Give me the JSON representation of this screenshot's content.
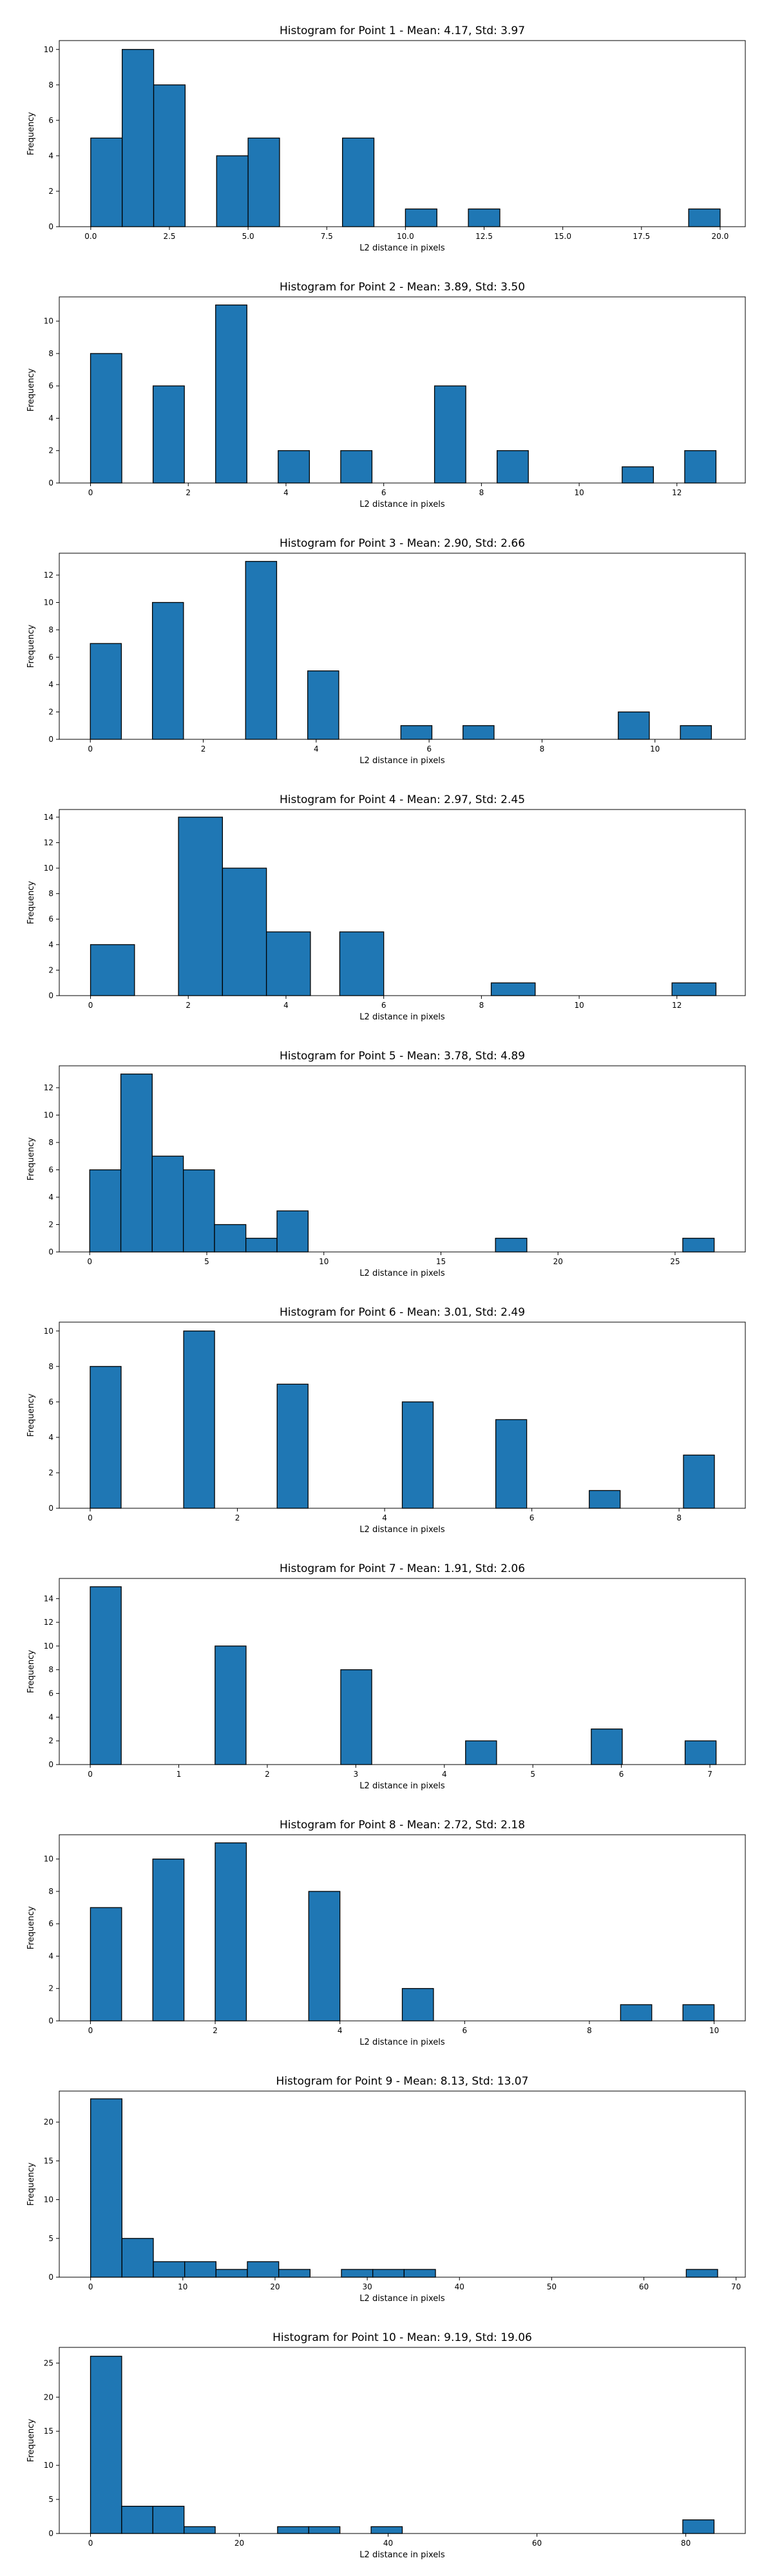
{
  "chart_data": [
    {
      "type": "bar",
      "title": "Histogram for Point 1 - Mean: 4.17, Std: 3.97",
      "xlabel": "L2 distance in pixels",
      "ylabel": "Frequency",
      "xlim": [
        -1.0,
        20.8
      ],
      "ylim": [
        0,
        10.5
      ],
      "xticks": [
        0,
        2.5,
        5,
        7.5,
        10,
        12.5,
        15,
        17.5,
        20
      ],
      "xtick_labels": [
        "0.0",
        "2.5",
        "5.0",
        "7.5",
        "10.0",
        "12.5",
        "15.0",
        "17.5",
        "20.0"
      ],
      "yticks": [
        0,
        2,
        4,
        6,
        8,
        10
      ],
      "bins": [
        {
          "x0": 0.0,
          "x1": 1.0,
          "count": 5
        },
        {
          "x0": 1.0,
          "x1": 2.0,
          "count": 10
        },
        {
          "x0": 2.0,
          "x1": 3.0,
          "count": 8
        },
        {
          "x0": 4.0,
          "x1": 5.0,
          "count": 4
        },
        {
          "x0": 5.0,
          "x1": 6.0,
          "count": 5
        },
        {
          "x0": 8.0,
          "x1": 9.0,
          "count": 5
        },
        {
          "x0": 10.0,
          "x1": 11.0,
          "count": 1
        },
        {
          "x0": 12.0,
          "x1": 13.0,
          "count": 1
        },
        {
          "x0": 19.0,
          "x1": 20.0,
          "count": 1
        }
      ]
    },
    {
      "type": "bar",
      "title": "Histogram for Point 2 - Mean: 3.89, Std: 3.50",
      "xlabel": "L2 distance in pixels",
      "ylabel": "Frequency",
      "xlim": [
        -0.64,
        13.4
      ],
      "ylim": [
        0,
        11.5
      ],
      "xticks": [
        0,
        2,
        4,
        6,
        8,
        10,
        12
      ],
      "xtick_labels": [
        "0",
        "2",
        "4",
        "6",
        "8",
        "10",
        "12"
      ],
      "yticks": [
        0,
        2,
        4,
        6,
        8,
        10
      ],
      "bins": [
        {
          "x0": 0.0,
          "x1": 0.64,
          "count": 8
        },
        {
          "x0": 1.28,
          "x1": 1.92,
          "count": 6
        },
        {
          "x0": 2.56,
          "x1": 3.2,
          "count": 11
        },
        {
          "x0": 3.84,
          "x1": 4.48,
          "count": 2
        },
        {
          "x0": 5.12,
          "x1": 5.76,
          "count": 2
        },
        {
          "x0": 7.04,
          "x1": 7.68,
          "count": 6
        },
        {
          "x0": 8.32,
          "x1": 8.96,
          "count": 2
        },
        {
          "x0": 10.88,
          "x1": 11.52,
          "count": 1
        },
        {
          "x0": 12.16,
          "x1": 12.8,
          "count": 2
        }
      ]
    },
    {
      "type": "bar",
      "title": "Histogram for Point 3 - Mean: 2.90, Std: 2.66",
      "xlabel": "L2 distance in pixels",
      "ylabel": "Frequency",
      "xlim": [
        -0.55,
        11.6
      ],
      "ylim": [
        0,
        13.6
      ],
      "xticks": [
        0,
        2,
        4,
        6,
        8,
        10
      ],
      "xtick_labels": [
        "0",
        "2",
        "4",
        "6",
        "8",
        "10"
      ],
      "yticks": [
        0,
        2,
        4,
        6,
        8,
        10,
        12
      ],
      "bins": [
        {
          "x0": 0.0,
          "x1": 0.55,
          "count": 7
        },
        {
          "x0": 1.1,
          "x1": 1.65,
          "count": 10
        },
        {
          "x0": 2.75,
          "x1": 3.3,
          "count": 13
        },
        {
          "x0": 3.85,
          "x1": 4.4,
          "count": 5
        },
        {
          "x0": 5.5,
          "x1": 6.05,
          "count": 1
        },
        {
          "x0": 6.6,
          "x1": 7.15,
          "count": 1
        },
        {
          "x0": 9.35,
          "x1": 9.9,
          "count": 2
        },
        {
          "x0": 10.45,
          "x1": 11.0,
          "count": 1
        }
      ]
    },
    {
      "type": "bar",
      "title": "Histogram for Point 4 - Mean: 2.97, Std: 2.45",
      "xlabel": "L2 distance in pixels",
      "ylabel": "Frequency",
      "xlim": [
        -0.64,
        13.4
      ],
      "ylim": [
        0,
        14.6
      ],
      "xticks": [
        0,
        2,
        4,
        6,
        8,
        10,
        12
      ],
      "xtick_labels": [
        "0",
        "2",
        "4",
        "6",
        "8",
        "10",
        "12"
      ],
      "yticks": [
        0,
        2,
        4,
        6,
        8,
        10,
        12,
        14
      ],
      "bins": [
        {
          "x0": 0.0,
          "x1": 0.9,
          "count": 4
        },
        {
          "x0": 1.8,
          "x1": 2.7,
          "count": 14
        },
        {
          "x0": 2.7,
          "x1": 3.6,
          "count": 10
        },
        {
          "x0": 3.6,
          "x1": 4.5,
          "count": 5
        },
        {
          "x0": 5.1,
          "x1": 6.0,
          "count": 5
        },
        {
          "x0": 8.2,
          "x1": 9.1,
          "count": 1
        },
        {
          "x0": 11.9,
          "x1": 12.8,
          "count": 1
        }
      ]
    },
    {
      "type": "bar",
      "title": "Histogram for Point 5 - Mean: 3.78, Std: 4.89",
      "xlabel": "L2 distance in pixels",
      "ylabel": "Frequency",
      "xlim": [
        -1.3,
        28.0
      ],
      "ylim": [
        0,
        13.6
      ],
      "xticks": [
        0,
        5,
        10,
        15,
        20,
        25
      ],
      "xtick_labels": [
        "0",
        "5",
        "10",
        "15",
        "20",
        "25"
      ],
      "yticks": [
        0,
        2,
        4,
        6,
        8,
        10,
        12
      ],
      "bins": [
        {
          "x0": 0.0,
          "x1": 1.33,
          "count": 6
        },
        {
          "x0": 1.33,
          "x1": 2.67,
          "count": 13
        },
        {
          "x0": 2.67,
          "x1": 4.0,
          "count": 7
        },
        {
          "x0": 4.0,
          "x1": 5.33,
          "count": 6
        },
        {
          "x0": 5.33,
          "x1": 6.67,
          "count": 2
        },
        {
          "x0": 6.67,
          "x1": 8.0,
          "count": 1
        },
        {
          "x0": 8.0,
          "x1": 9.33,
          "count": 3
        },
        {
          "x0": 17.33,
          "x1": 18.67,
          "count": 1
        },
        {
          "x0": 25.33,
          "x1": 26.67,
          "count": 1
        }
      ]
    },
    {
      "type": "bar",
      "title": "Histogram for Point 6 - Mean: 3.01, Std: 2.49",
      "xlabel": "L2 distance in pixels",
      "ylabel": "Frequency",
      "xlim": [
        -0.42,
        8.9
      ],
      "ylim": [
        0,
        10.5
      ],
      "xticks": [
        0,
        2,
        4,
        6,
        8
      ],
      "xtick_labels": [
        "0",
        "2",
        "4",
        "6",
        "8"
      ],
      "yticks": [
        0,
        2,
        4,
        6,
        8,
        10
      ],
      "bins": [
        {
          "x0": 0.0,
          "x1": 0.42,
          "count": 8
        },
        {
          "x0": 1.27,
          "x1": 1.69,
          "count": 10
        },
        {
          "x0": 2.54,
          "x1": 2.96,
          "count": 7
        },
        {
          "x0": 4.24,
          "x1": 4.66,
          "count": 6
        },
        {
          "x0": 5.51,
          "x1": 5.93,
          "count": 5
        },
        {
          "x0": 6.78,
          "x1": 7.2,
          "count": 1
        },
        {
          "x0": 8.06,
          "x1": 8.48,
          "count": 3
        }
      ]
    },
    {
      "type": "bar",
      "title": "Histogram for Point 7 - Mean: 1.91, Std: 2.06",
      "xlabel": "L2 distance in pixels",
      "ylabel": "Frequency",
      "xlim": [
        -0.35,
        7.4
      ],
      "ylim": [
        0,
        15.7
      ],
      "xticks": [
        0,
        1,
        2,
        3,
        4,
        5,
        6,
        7
      ],
      "xtick_labels": [
        "0",
        "1",
        "2",
        "3",
        "4",
        "5",
        "6",
        "7"
      ],
      "yticks": [
        0,
        2,
        4,
        6,
        8,
        10,
        12,
        14
      ],
      "bins": [
        {
          "x0": 0.0,
          "x1": 0.35,
          "count": 15
        },
        {
          "x0": 1.41,
          "x1": 1.76,
          "count": 10
        },
        {
          "x0": 2.83,
          "x1": 3.18,
          "count": 8
        },
        {
          "x0": 4.24,
          "x1": 4.59,
          "count": 2
        },
        {
          "x0": 5.66,
          "x1": 6.01,
          "count": 3
        },
        {
          "x0": 6.72,
          "x1": 7.07,
          "count": 2
        }
      ]
    },
    {
      "type": "bar",
      "title": "Histogram for Point 8 - Mean: 2.72, Std: 2.18",
      "xlabel": "L2 distance in pixels",
      "ylabel": "Frequency",
      "xlim": [
        -0.5,
        10.5
      ],
      "ylim": [
        0,
        11.5
      ],
      "xticks": [
        0,
        2,
        4,
        6,
        8,
        10
      ],
      "xtick_labels": [
        "0",
        "2",
        "4",
        "6",
        "8",
        "10"
      ],
      "yticks": [
        0,
        2,
        4,
        6,
        8,
        10
      ],
      "bins": [
        {
          "x0": 0.0,
          "x1": 0.5,
          "count": 7
        },
        {
          "x0": 1.0,
          "x1": 1.5,
          "count": 10
        },
        {
          "x0": 2.0,
          "x1": 2.5,
          "count": 11
        },
        {
          "x0": 3.5,
          "x1": 4.0,
          "count": 8
        },
        {
          "x0": 5.0,
          "x1": 5.5,
          "count": 2
        },
        {
          "x0": 8.5,
          "x1": 9.0,
          "count": 1
        },
        {
          "x0": 9.5,
          "x1": 10.0,
          "count": 1
        }
      ]
    },
    {
      "type": "bar",
      "title": "Histogram for Point 9 - Mean: 8.13, Std: 13.07",
      "xlabel": "L2 distance in pixels",
      "ylabel": "Frequency",
      "xlim": [
        -3.4,
        71.0
      ],
      "ylim": [
        0,
        24.0
      ],
      "xticks": [
        0,
        10,
        20,
        30,
        40,
        50,
        60,
        70
      ],
      "xtick_labels": [
        "0",
        "10",
        "20",
        "30",
        "40",
        "50",
        "60",
        "70"
      ],
      "yticks": [
        0,
        5,
        10,
        15,
        20
      ],
      "bins": [
        {
          "x0": 0.0,
          "x1": 3.4,
          "count": 23
        },
        {
          "x0": 3.4,
          "x1": 6.8,
          "count": 5
        },
        {
          "x0": 6.8,
          "x1": 10.2,
          "count": 2
        },
        {
          "x0": 10.2,
          "x1": 13.6,
          "count": 2
        },
        {
          "x0": 13.6,
          "x1": 17.0,
          "count": 1
        },
        {
          "x0": 17.0,
          "x1": 20.4,
          "count": 2
        },
        {
          "x0": 20.4,
          "x1": 23.8,
          "count": 1
        },
        {
          "x0": 27.2,
          "x1": 30.6,
          "count": 1
        },
        {
          "x0": 30.6,
          "x1": 34.0,
          "count": 1
        },
        {
          "x0": 34.0,
          "x1": 37.4,
          "count": 1
        },
        {
          "x0": 64.6,
          "x1": 68.0,
          "count": 1
        }
      ]
    },
    {
      "type": "bar",
      "title": "Histogram for Point 10 - Mean: 9.19, Std: 19.06",
      "xlabel": "L2 distance in pixels",
      "ylabel": "Frequency",
      "xlim": [
        -4.2,
        88.0
      ],
      "ylim": [
        0,
        27.3
      ],
      "xticks": [
        0,
        20,
        40,
        60,
        80
      ],
      "xtick_labels": [
        "0",
        "20",
        "40",
        "60",
        "80"
      ],
      "yticks": [
        0,
        5,
        10,
        15,
        20,
        25
      ],
      "bins": [
        {
          "x0": 0.0,
          "x1": 4.19,
          "count": 26
        },
        {
          "x0": 4.19,
          "x1": 8.38,
          "count": 4
        },
        {
          "x0": 8.38,
          "x1": 12.57,
          "count": 4
        },
        {
          "x0": 12.57,
          "x1": 16.76,
          "count": 1
        },
        {
          "x0": 25.14,
          "x1": 29.33,
          "count": 1
        },
        {
          "x0": 29.33,
          "x1": 33.52,
          "count": 1
        },
        {
          "x0": 37.71,
          "x1": 41.9,
          "count": 1
        },
        {
          "x0": 79.6,
          "x1": 83.8,
          "count": 2
        }
      ]
    }
  ]
}
